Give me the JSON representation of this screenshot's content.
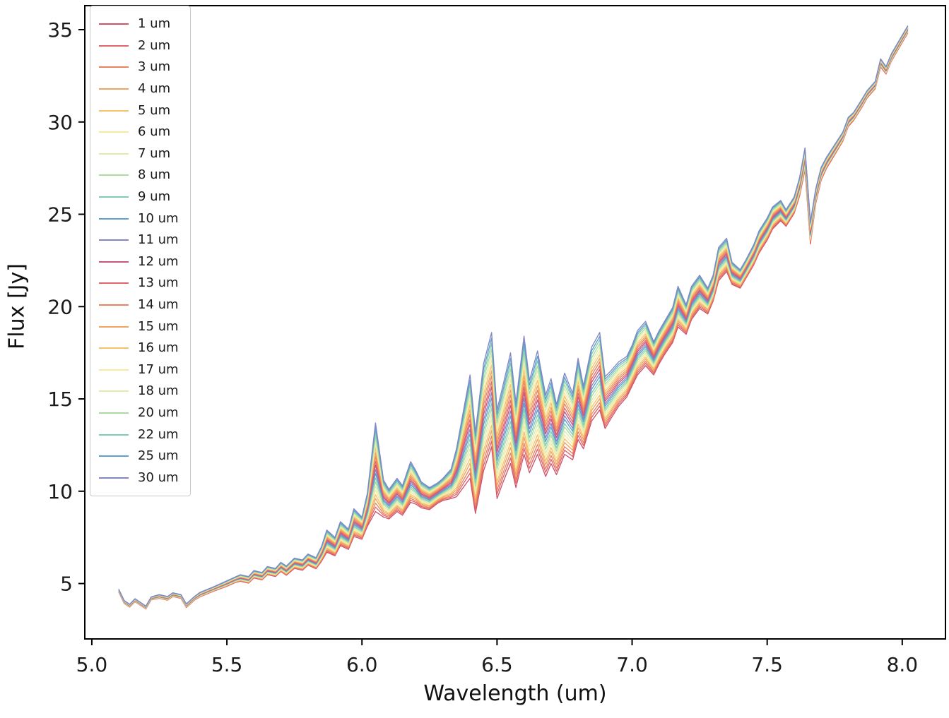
{
  "figure": {
    "background": "#ffffff",
    "spine_color": "#000000",
    "tick_label_color": "#1a1a1a"
  },
  "chart_data": {
    "type": "line",
    "title": "",
    "xlabel": "Wavelength (um)",
    "ylabel": "Flux [Jy]",
    "xlim": [
      4.974,
      8.16
    ],
    "ylim": [
      2.0,
      36.3
    ],
    "grid": false,
    "legend_position": "upper left",
    "xticks": {
      "values": [
        5.0,
        5.5,
        6.0,
        6.5,
        7.0,
        7.5,
        8.0
      ],
      "labels": [
        "5.0",
        "5.5",
        "6.0",
        "6.5",
        "7.0",
        "7.5",
        "8.0"
      ]
    },
    "yticks": {
      "values": [
        5,
        10,
        15,
        20,
        25,
        30,
        35
      ],
      "labels": [
        "5",
        "10",
        "15",
        "20",
        "25",
        "30",
        "35"
      ]
    },
    "series_model": "flux_of_series = base_spectrum.flux + offset_factor * base_spectrum.half_spread",
    "base_spectrum": {
      "x": [
        5.1,
        5.12,
        5.14,
        5.16,
        5.18,
        5.2,
        5.22,
        5.25,
        5.28,
        5.3,
        5.33,
        5.35,
        5.38,
        5.4,
        5.45,
        5.5,
        5.53,
        5.55,
        5.58,
        5.6,
        5.63,
        5.65,
        5.68,
        5.7,
        5.72,
        5.75,
        5.78,
        5.8,
        5.83,
        5.85,
        5.87,
        5.9,
        5.92,
        5.95,
        5.97,
        6.0,
        6.02,
        6.05,
        6.08,
        6.1,
        6.13,
        6.15,
        6.18,
        6.2,
        6.22,
        6.25,
        6.28,
        6.3,
        6.33,
        6.35,
        6.38,
        6.4,
        6.42,
        6.45,
        6.48,
        6.5,
        6.52,
        6.55,
        6.57,
        6.6,
        6.62,
        6.65,
        6.68,
        6.7,
        6.72,
        6.75,
        6.78,
        6.8,
        6.82,
        6.85,
        6.88,
        6.9,
        6.92,
        6.95,
        6.98,
        7.0,
        7.02,
        7.05,
        7.08,
        7.1,
        7.12,
        7.15,
        7.17,
        7.2,
        7.22,
        7.25,
        7.28,
        7.3,
        7.32,
        7.35,
        7.37,
        7.4,
        7.42,
        7.45,
        7.47,
        7.5,
        7.52,
        7.55,
        7.57,
        7.6,
        7.62,
        7.64,
        7.66,
        7.68,
        7.7,
        7.72,
        7.75,
        7.78,
        7.8,
        7.82,
        7.85,
        7.87,
        7.9,
        7.92,
        7.94,
        7.96,
        7.98,
        8.0,
        8.02
      ],
      "flux": [
        4.6,
        4.0,
        3.8,
        4.1,
        3.9,
        3.7,
        4.2,
        4.3,
        4.2,
        4.4,
        4.3,
        3.8,
        4.2,
        4.4,
        4.7,
        5.0,
        5.2,
        5.3,
        5.2,
        5.5,
        5.4,
        5.7,
        5.6,
        5.9,
        5.7,
        6.1,
        6.0,
        6.3,
        6.1,
        6.6,
        7.3,
        7.0,
        7.7,
        7.4,
        8.3,
        8.0,
        9.0,
        11.3,
        9.6,
        9.3,
        9.8,
        9.5,
        10.5,
        10.2,
        9.8,
        9.6,
        9.9,
        10.1,
        10.4,
        11.0,
        12.5,
        13.5,
        11.0,
        14.0,
        15.5,
        12.0,
        13.0,
        14.5,
        12.5,
        15.2,
        13.5,
        14.8,
        13.0,
        13.8,
        12.8,
        14.2,
        13.5,
        15.0,
        14.0,
        15.8,
        16.5,
        14.8,
        15.2,
        15.8,
        16.2,
        16.8,
        17.5,
        18.0,
        17.2,
        17.8,
        18.3,
        19.0,
        20.0,
        19.3,
        20.2,
        20.8,
        20.3,
        21.0,
        22.3,
        22.8,
        21.8,
        21.5,
        22.0,
        22.8,
        23.5,
        24.2,
        24.8,
        25.2,
        24.8,
        25.5,
        26.5,
        28.0,
        24.0,
        26.0,
        27.2,
        27.8,
        28.5,
        29.2,
        30.0,
        30.3,
        31.0,
        31.5,
        32.0,
        33.2,
        32.8,
        33.5,
        34.0,
        34.5,
        35.0
      ],
      "half_spread": [
        0.08,
        0.08,
        0.08,
        0.08,
        0.08,
        0.08,
        0.08,
        0.1,
        0.1,
        0.1,
        0.1,
        0.1,
        0.1,
        0.12,
        0.12,
        0.15,
        0.15,
        0.18,
        0.18,
        0.2,
        0.2,
        0.22,
        0.22,
        0.25,
        0.25,
        0.28,
        0.28,
        0.3,
        0.3,
        0.4,
        0.6,
        0.5,
        0.65,
        0.55,
        0.75,
        0.6,
        0.9,
        2.4,
        1.0,
        0.8,
        0.9,
        0.8,
        1.1,
        0.9,
        0.7,
        0.6,
        0.55,
        0.6,
        0.8,
        1.3,
        2.2,
        2.8,
        2.2,
        2.9,
        3.1,
        2.4,
        2.6,
        3.0,
        2.3,
        3.2,
        2.5,
        2.8,
        2.2,
        2.3,
        1.9,
        2.2,
        1.8,
        2.2,
        1.7,
        2.0,
        2.1,
        1.4,
        1.3,
        1.2,
        1.1,
        1.1,
        1.2,
        1.2,
        0.9,
        0.9,
        0.9,
        0.95,
        1.1,
        0.8,
        0.9,
        0.9,
        0.7,
        0.7,
        0.9,
        0.9,
        0.6,
        0.5,
        0.5,
        0.55,
        0.6,
        0.6,
        0.6,
        0.55,
        0.45,
        0.45,
        0.5,
        0.6,
        0.6,
        0.4,
        0.35,
        0.3,
        0.28,
        0.25,
        0.25,
        0.22,
        0.22,
        0.2,
        0.2,
        0.22,
        0.2,
        0.2,
        0.2,
        0.2,
        0.2
      ]
    },
    "series": [
      {
        "label": "1 um",
        "color": "#cf5369",
        "offset_factor": -1.0
      },
      {
        "label": "2 um",
        "color": "#e2656c",
        "offset_factor": -0.9
      },
      {
        "label": "3 um",
        "color": "#ec835f",
        "offset_factor": -0.81
      },
      {
        "label": "4 um",
        "color": "#f1a35f",
        "offset_factor": -0.71
      },
      {
        "label": "5 um",
        "color": "#f6c169",
        "offset_factor": -0.62
      },
      {
        "label": "6 um",
        "color": "#f7e9a0",
        "offset_factor": -0.52
      },
      {
        "label": "7 um",
        "color": "#dcecaf",
        "offset_factor": -0.43
      },
      {
        "label": "8 um",
        "color": "#abdba2",
        "offset_factor": -0.33
      },
      {
        "label": "9 um",
        "color": "#7fcdb0",
        "offset_factor": -0.24
      },
      {
        "label": "10 um",
        "color": "#5f9ecd",
        "offset_factor": -0.14
      },
      {
        "label": "11 um",
        "color": "#8287c4",
        "offset_factor": -0.05
      },
      {
        "label": "12 um",
        "color": "#c9547c",
        "offset_factor": 0.05
      },
      {
        "label": "13 um",
        "color": "#e2656c",
        "offset_factor": 0.14
      },
      {
        "label": "14 um",
        "color": "#ec835f",
        "offset_factor": 0.24
      },
      {
        "label": "15 um",
        "color": "#f1a35f",
        "offset_factor": 0.33
      },
      {
        "label": "16 um",
        "color": "#f6c169",
        "offset_factor": 0.43
      },
      {
        "label": "17 um",
        "color": "#f7e9a0",
        "offset_factor": 0.52
      },
      {
        "label": "18 um",
        "color": "#dcecaf",
        "offset_factor": 0.62
      },
      {
        "label": "20 um",
        "color": "#abdba2",
        "offset_factor": 0.71
      },
      {
        "label": "22 um",
        "color": "#7fcdb0",
        "offset_factor": 0.81
      },
      {
        "label": "25 um",
        "color": "#5f9ecd",
        "offset_factor": 0.9
      },
      {
        "label": "30 um",
        "color": "#8287c4",
        "offset_factor": 1.0
      }
    ]
  }
}
